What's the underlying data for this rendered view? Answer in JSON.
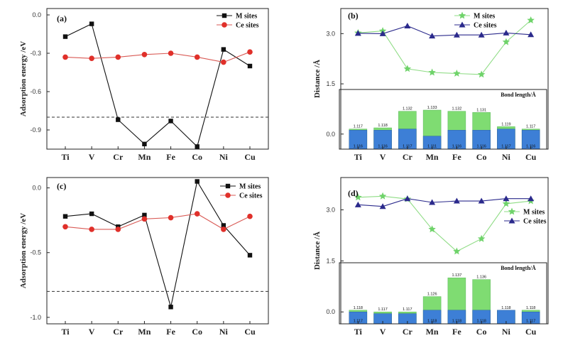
{
  "colors": {
    "black": "#111111",
    "red": "#e0302a",
    "redLine": "#d95a55",
    "green": "#6fd36a",
    "greenLine": "#8fdc85",
    "navy": "#2b2a8c",
    "barBlue": "#3d7fd6",
    "barGreen": "#7fdc72",
    "dashed": "#333333"
  },
  "chart_data": [
    {
      "id": "a",
      "type": "line",
      "panel_label": "(a)",
      "ylabel": "Adsorption energy /eV",
      "ylim": [
        -1.05,
        0.05
      ],
      "yticks": [
        0.0,
        -0.3,
        -0.6,
        -0.9
      ],
      "ytick_labels": [
        "0.0",
        "-0.3",
        "-0.6",
        "-0.9"
      ],
      "reference_line": -0.8,
      "categories": [
        "Ti",
        "V",
        "Cr",
        "Mn",
        "Fe",
        "Co",
        "Ni",
        "Cu"
      ],
      "series": [
        {
          "name": "M sites",
          "color": "black",
          "marker": "square",
          "values": [
            -0.17,
            -0.07,
            -0.82,
            -1.01,
            -0.83,
            -1.03,
            -0.27,
            -0.4
          ]
        },
        {
          "name": "Ce sites",
          "color": "red",
          "marker": "circle",
          "values": [
            -0.33,
            -0.34,
            -0.33,
            -0.31,
            -0.3,
            -0.33,
            -0.37,
            -0.29
          ]
        }
      ],
      "legend": "top-right"
    },
    {
      "id": "b",
      "type": "line",
      "panel_label": "(b)",
      "ylabel": "Distance /Å",
      "ylim": [
        -0.45,
        3.75
      ],
      "yticks": [
        0.0,
        1.5,
        3.0
      ],
      "ytick_labels": [
        "0.0",
        "1.5",
        "3.0"
      ],
      "categories": [
        "Ti",
        "V",
        "Cr",
        "Mn",
        "Fe",
        "Co",
        "Ni",
        "Cu"
      ],
      "series": [
        {
          "name": "M sites",
          "color": "green",
          "marker": "star",
          "values": [
            3.02,
            3.08,
            1.95,
            1.84,
            1.81,
            1.78,
            2.75,
            3.4
          ]
        },
        {
          "name": "Ce sites",
          "color": "navy",
          "marker": "triangle",
          "values": [
            3.01,
            3.0,
            3.23,
            2.93,
            2.96,
            2.96,
            3.02,
            2.97
          ]
        }
      ],
      "legend": "top-right",
      "inset": {
        "title": "Bond length/Å",
        "ymin": 1.1,
        "ymax": 1.142,
        "adsorbed": [
          1.116,
          1.116,
          1.117,
          1.111,
          1.116,
          1.116,
          1.117,
          1.116
        ],
        "adsorbed_labels": [
          "1.116",
          "1.116",
          "1.117",
          "1.111",
          "1.116",
          "1.116",
          "1.117",
          "1.116"
        ],
        "free": [
          1.117,
          1.118,
          1.132,
          1.133,
          1.132,
          1.131,
          1.119,
          1.117
        ],
        "free_labels": [
          "1.117",
          "1.118",
          "1.132",
          "1.133",
          "1.132",
          "1.131",
          "1.119",
          "1.117"
        ]
      }
    },
    {
      "id": "c",
      "type": "line",
      "panel_label": "(c)",
      "ylabel": "Adsorption energy /eV",
      "ylim": [
        -1.05,
        0.08
      ],
      "yticks": [
        0.0,
        -0.5,
        -1.0
      ],
      "ytick_labels": [
        "0.0",
        "-0.5",
        "-1.0"
      ],
      "reference_line": -0.8,
      "categories": [
        "Ti",
        "V",
        "Cr",
        "Mn",
        "Fe",
        "Co",
        "Ni",
        "Cu"
      ],
      "series": [
        {
          "name": "M sites",
          "color": "black",
          "marker": "square",
          "values": [
            -0.22,
            -0.2,
            -0.3,
            -0.21,
            -0.92,
            0.05,
            -0.29,
            -0.52
          ]
        },
        {
          "name": "Ce sites",
          "color": "red",
          "marker": "circle",
          "values": [
            -0.3,
            -0.32,
            -0.32,
            -0.24,
            -0.23,
            -0.2,
            -0.32,
            -0.22
          ]
        }
      ],
      "legend": "top-right"
    },
    {
      "id": "d",
      "type": "line",
      "panel_label": "(d)",
      "ylabel": "Distance /Å",
      "ylim": [
        -0.35,
        3.95
      ],
      "yticks": [
        0.0,
        1.5,
        3.0
      ],
      "ytick_labels": [
        "0.0",
        "1.5",
        "3.0"
      ],
      "categories": [
        "Ti",
        "V",
        "Cr",
        "Mn",
        "Fe",
        "Co",
        "Ni",
        "Cu"
      ],
      "series": [
        {
          "name": "M sites",
          "color": "green",
          "marker": "star",
          "values": [
            3.37,
            3.4,
            3.32,
            2.43,
            1.78,
            2.15,
            3.18,
            3.26
          ]
        },
        {
          "name": "Ce sites",
          "color": "navy",
          "marker": "triangle",
          "values": [
            3.15,
            3.1,
            3.33,
            3.22,
            3.26,
            3.26,
            3.33,
            3.33
          ]
        }
      ],
      "legend": "right",
      "inset": {
        "title": "Bond length/Å",
        "ymin": 1.11,
        "ymax": 1.14,
        "adsorbed": [
          1.117,
          1.116,
          1.116,
          1.118,
          1.118,
          1.118,
          1.118,
          1.117
        ],
        "adsorbed_labels": [
          "1.117",
          "",
          "",
          "1.118",
          "1.118",
          "1.118",
          "",
          "1.117"
        ],
        "free": [
          1.118,
          1.117,
          1.117,
          1.126,
          1.137,
          1.136,
          1.118,
          1.118
        ],
        "free_labels": [
          "1.118",
          "1.117",
          "1.117",
          "1.126",
          "1.137",
          "1.136",
          "1.118",
          "1.118"
        ]
      }
    }
  ]
}
